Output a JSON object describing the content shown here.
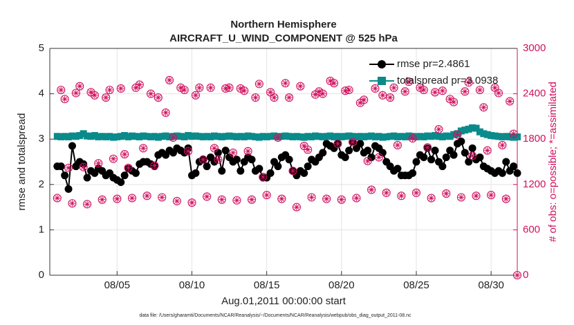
{
  "chart_data": {
    "type": "line",
    "title": "Northern Hemisphere",
    "subtitle": "AIRCRAFT_U_WIND_COMPONENT @ 525 hPa",
    "xlabel": "Aug.01,2011 00:00:00 start",
    "ylabel": "rmse and totalspread",
    "y2label": "# of obs: o=possible; *=assimilated",
    "footnote": "data file: /Users/gharamti/Documents/NCAR/Reanalysis/~/Documents/NCAR/Reanalysis/webpub/obs_diag_output_2011-08.nc",
    "xlim": [
      -0.5,
      30.75
    ],
    "xticks": [
      {
        "value": 4,
        "label": "08/05"
      },
      {
        "value": 9,
        "label": "08/10"
      },
      {
        "value": 14,
        "label": "08/15"
      },
      {
        "value": 19,
        "label": "08/20"
      },
      {
        "value": 24,
        "label": "08/25"
      },
      {
        "value": 29,
        "label": "08/30"
      }
    ],
    "ylim": [
      0,
      5
    ],
    "yticks": [
      0,
      1,
      2,
      3,
      4,
      5
    ],
    "y2lim": [
      0,
      3000
    ],
    "y2ticks": [
      0,
      600,
      1200,
      1800,
      2400,
      3000
    ],
    "grid": true,
    "legend": "upper right",
    "x": [
      0,
      0.25,
      0.5,
      0.75,
      1,
      1.25,
      1.5,
      1.75,
      2,
      2.25,
      2.5,
      2.75,
      3,
      3.25,
      3.5,
      3.75,
      4,
      4.25,
      4.5,
      4.75,
      5,
      5.25,
      5.5,
      5.75,
      6,
      6.25,
      6.5,
      6.75,
      7,
      7.25,
      7.5,
      7.75,
      8,
      8.25,
      8.5,
      8.75,
      9,
      9.25,
      9.5,
      9.75,
      10,
      10.25,
      10.5,
      10.75,
      11,
      11.25,
      11.5,
      11.75,
      12,
      12.25,
      12.5,
      12.75,
      13,
      13.25,
      13.5,
      13.75,
      14,
      14.25,
      14.5,
      14.75,
      15,
      15.25,
      15.5,
      15.75,
      16,
      16.25,
      16.5,
      16.75,
      17,
      17.25,
      17.5,
      17.75,
      18,
      18.25,
      18.5,
      18.75,
      19,
      19.25,
      19.5,
      19.75,
      20,
      20.25,
      20.5,
      20.75,
      21,
      21.25,
      21.5,
      21.75,
      22,
      22.25,
      22.5,
      22.75,
      23,
      23.25,
      23.5,
      23.75,
      24,
      24.25,
      24.5,
      24.75,
      25,
      25.25,
      25.5,
      25.75,
      26,
      26.25,
      26.5,
      26.75,
      27,
      27.25,
      27.5,
      27.75,
      28,
      28.25,
      28.5,
      28.75,
      29,
      29.25,
      29.5,
      29.75,
      30,
      30.25,
      30.5,
      30.75
    ],
    "series": [
      {
        "name": "rmse pr=2.4861",
        "color": "#000000",
        "marker": "circle",
        "values": [
          2.4,
          2.4,
          2.2,
          1.9,
          2.85,
          2.4,
          2.5,
          2.45,
          2.15,
          2.3,
          2.25,
          2.35,
          2.3,
          2.2,
          2.25,
          2.15,
          2.1,
          2.05,
          2.2,
          2.35,
          2.3,
          2.25,
          2.45,
          2.5,
          2.5,
          2.45,
          2.4,
          2.65,
          2.7,
          2.65,
          2.75,
          2.7,
          2.8,
          2.75,
          2.7,
          2.8,
          2.2,
          2.25,
          2.5,
          2.55,
          2.4,
          2.6,
          2.5,
          2.7,
          2.3,
          2.75,
          2.6,
          2.5,
          2.55,
          2.3,
          2.5,
          2.6,
          2.55,
          2.3,
          2.35,
          2.15,
          2.15,
          2.25,
          2.5,
          2.4,
          2.6,
          2.65,
          2.55,
          2.3,
          2.2,
          2.3,
          2.25,
          2.4,
          2.55,
          2.5,
          2.6,
          2.7,
          2.9,
          2.85,
          2.8,
          2.9,
          2.65,
          2.6,
          2.75,
          2.95,
          2.8,
          2.9,
          2.7,
          2.75,
          2.6,
          2.85,
          2.8,
          2.7,
          2.5,
          2.4,
          2.3,
          2.35,
          2.2,
          2.2,
          2.2,
          2.25,
          2.5,
          2.65,
          2.6,
          2.8,
          2.55,
          2.75,
          2.5,
          2.4,
          2.6,
          2.75,
          2.65,
          2.9,
          2.95,
          2.7,
          2.5,
          2.8,
          2.55,
          2.6,
          2.4,
          2.35,
          2.3,
          2.25,
          2.3,
          2.25,
          2.5,
          2.3,
          2.4,
          2.25
        ]
      },
      {
        "name": "totalspread pr=3.0938",
        "color": "#0a8a8a",
        "marker": "square",
        "values": [
          3.06,
          3.05,
          3.06,
          3.05,
          3.07,
          3.06,
          3.08,
          3.12,
          3.07,
          3.06,
          3.08,
          3.05,
          3.06,
          3.05,
          3.06,
          3.04,
          3.05,
          3.06,
          3.08,
          3.05,
          3.07,
          3.06,
          3.05,
          3.07,
          3.06,
          3.05,
          3.06,
          3.04,
          3.06,
          3.07,
          3.05,
          3.06,
          3.07,
          3.06,
          3.05,
          3.08,
          3.06,
          3.07,
          3.06,
          3.05,
          3.06,
          3.05,
          3.07,
          3.06,
          3.05,
          3.06,
          3.07,
          3.06,
          3.05,
          3.06,
          3.05,
          3.07,
          3.06,
          3.05,
          3.04,
          3.06,
          3.05,
          3.06,
          3.07,
          3.05,
          3.06,
          3.07,
          3.06,
          3.05,
          3.06,
          3.05,
          3.04,
          3.06,
          3.05,
          3.07,
          3.06,
          3.05,
          3.06,
          3.07,
          3.05,
          3.06,
          3.05,
          3.06,
          3.07,
          3.06,
          3.05,
          3.06,
          3.05,
          3.06,
          3.07,
          3.05,
          3.06,
          3.04,
          3.05,
          3.06,
          3.07,
          3.05,
          3.06,
          3.05,
          3.07,
          3.06,
          3.05,
          3.06,
          3.05,
          3.07,
          3.06,
          3.08,
          3.06,
          3.05,
          3.07,
          3.06,
          3.1,
          3.12,
          3.18,
          3.2,
          3.22,
          3.25,
          3.24,
          3.16,
          3.12,
          3.1,
          3.08,
          3.07,
          3.06,
          3.05,
          3.06,
          3.05,
          3.04,
          3.05
        ]
      },
      {
        "color": "#d0105e",
        "axis": "y2",
        "marker": "o",
        "values": [
          1020,
          2450,
          2330,
          1420,
          950,
          2410,
          2500,
          1430,
          940,
          2420,
          2380,
          1480,
          1000,
          2350,
          2450,
          1540,
          1010,
          2470,
          1600,
          1420,
          1020,
          2480,
          2520,
          1680,
          1050,
          2400,
          1450,
          2350,
          1030,
          2150,
          2580,
          1820,
          980,
          2480,
          2450,
          1640,
          960,
          2380,
          2480,
          1530,
          1040,
          2480,
          1680,
          1530,
          1000,
          2470,
          2480,
          1620,
          990,
          2470,
          2440,
          1640,
          1000,
          2350,
          2530,
          1300,
          1060,
          2420,
          2350,
          1820,
          1010,
          2540,
          2350,
          1380,
          900,
          2500,
          1710,
          1660,
          1030,
          2390,
          2430,
          2400,
          1010,
          2570,
          2540,
          1740,
          1000,
          2440,
          2450,
          1760,
          1020,
          2280,
          2320,
          1510,
          1130,
          2470,
          1560,
          2380,
          1090,
          2350,
          2480,
          1720,
          1050,
          2430,
          2560,
          1810,
          1090,
          2480,
          2450,
          1690,
          1020,
          2420,
          1930,
          2440,
          1080,
          2330,
          2290,
          1860,
          1030,
          2430,
          2550,
          1580,
          1050,
          2450,
          2220,
          1650,
          1060,
          2480,
          2410,
          1720,
          1010,
          2300,
          1870,
          0
        ]
      },
      {
        "color": "#d0105e",
        "axis": "y2",
        "marker": "*",
        "values": [
          1020,
          2450,
          2330,
          1420,
          950,
          2410,
          2500,
          1430,
          940,
          2420,
          2380,
          1480,
          1000,
          2350,
          2450,
          1540,
          1010,
          2470,
          1600,
          1420,
          1020,
          2480,
          2520,
          1680,
          1050,
          2400,
          1450,
          2350,
          1030,
          2150,
          2580,
          1820,
          980,
          2480,
          2450,
          1640,
          960,
          2380,
          2480,
          1530,
          1040,
          2480,
          1680,
          1530,
          1000,
          2470,
          2480,
          1620,
          990,
          2470,
          2440,
          1640,
          1000,
          2350,
          2530,
          1300,
          1060,
          2420,
          2350,
          1820,
          1010,
          2540,
          2350,
          1380,
          900,
          2500,
          1710,
          1660,
          1030,
          2390,
          2430,
          2400,
          1010,
          2570,
          2540,
          1740,
          1000,
          2440,
          2450,
          1760,
          1020,
          2280,
          2320,
          1510,
          1130,
          2470,
          1560,
          2380,
          1090,
          2350,
          2480,
          1720,
          1050,
          2430,
          2560,
          1810,
          1090,
          2480,
          2450,
          1690,
          1020,
          2420,
          1930,
          2440,
          1080,
          2330,
          2290,
          1860,
          1030,
          2430,
          2550,
          1580,
          1050,
          2450,
          2220,
          1650,
          1060,
          2480,
          2410,
          1720,
          1010,
          2300,
          1870,
          0
        ]
      }
    ]
  }
}
